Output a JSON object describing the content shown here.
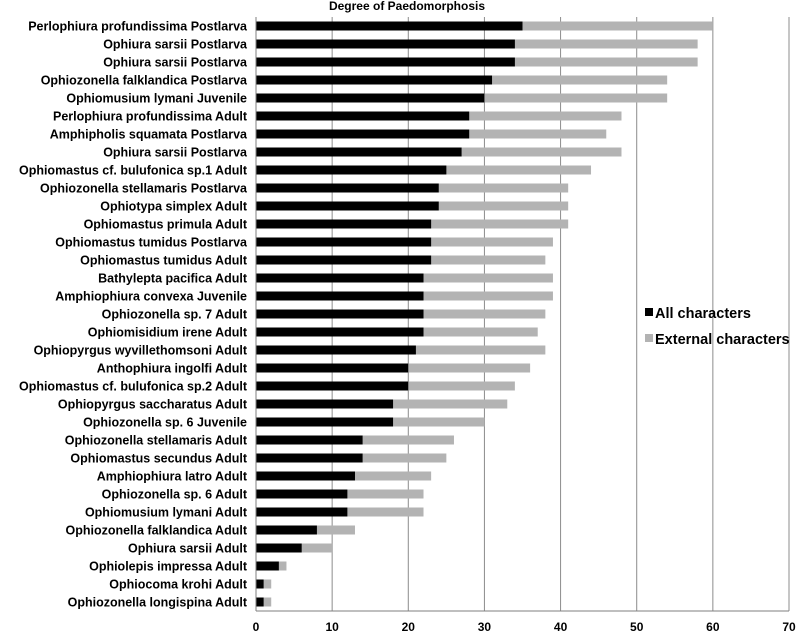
{
  "chart_data": {
    "type": "bar",
    "orientation": "horizontal",
    "stacked": false,
    "overlapping": true,
    "title": "Degree of Paedomorphosis",
    "xlabel": "",
    "ylabel": "",
    "xlim": [
      0,
      70
    ],
    "xticks": [
      0,
      10,
      20,
      30,
      40,
      50,
      60,
      70
    ],
    "grid": "vertical",
    "legend_position": "right",
    "categories": [
      "Perlophiura profundissima Postlarva",
      "Ophiura sarsii Postlarva",
      "Ophiura sarsii Postlarva",
      "Ophiozonella falklandica Postlarva",
      "Ophiomusium lymani Juvenile",
      "Perlophiura profundissima Adult",
      "Amphipholis squamata Postlarva",
      "Ophiura sarsii Postlarva",
      "Ophiomastus cf. bulufonica sp.1 Adult",
      "Ophiozonella stellamaris Postlarva",
      "Ophiotypa simplex Adult",
      "Ophiomastus primula Adult",
      "Ophiomastus tumidus Postlarva",
      "Ophiomastus tumidus Adult",
      "Bathylepta pacifica Adult",
      "Amphiophiura convexa Juvenile",
      "Ophiozonella sp. 7 Adult",
      "Ophiomisidium irene Adult",
      "Ophiopyrgus wyvillethomsoni Adult",
      "Anthophiura ingolfi Adult",
      "Ophiomastus cf. bulufonica sp.2 Adult",
      "Ophiopyrgus saccharatus Adult",
      "Ophiozonella sp. 6 Juvenile",
      "Ophiozonella stellamaris Adult",
      "Ophiomastus secundus Adult",
      "Amphiophiura latro Adult",
      "Ophiozonella sp. 6 Adult",
      "Ophiomusium lymani Adult",
      "Ophiozonella falklandica Adult",
      "Ophiura sarsii Adult",
      "Ophiolepis impressa Adult",
      "Ophiocoma krohi Adult",
      "Ophiozonella longispina Adult"
    ],
    "series": [
      {
        "name": "All characters",
        "color": "#000000",
        "values": [
          35,
          34,
          34,
          31,
          30,
          28,
          28,
          27,
          25,
          24,
          24,
          23,
          23,
          23,
          22,
          22,
          22,
          22,
          21,
          20,
          20,
          18,
          18,
          14,
          14,
          13,
          12,
          12,
          8,
          6,
          3,
          1,
          1
        ]
      },
      {
        "name": "External characters",
        "color": "#b3b3b3",
        "values": [
          60,
          58,
          58,
          54,
          54,
          48,
          46,
          48,
          44,
          41,
          41,
          41,
          39,
          38,
          39,
          39,
          38,
          37,
          38,
          36,
          34,
          33,
          30,
          26,
          25,
          23,
          22,
          22,
          13,
          10,
          4,
          2,
          2
        ]
      }
    ]
  }
}
